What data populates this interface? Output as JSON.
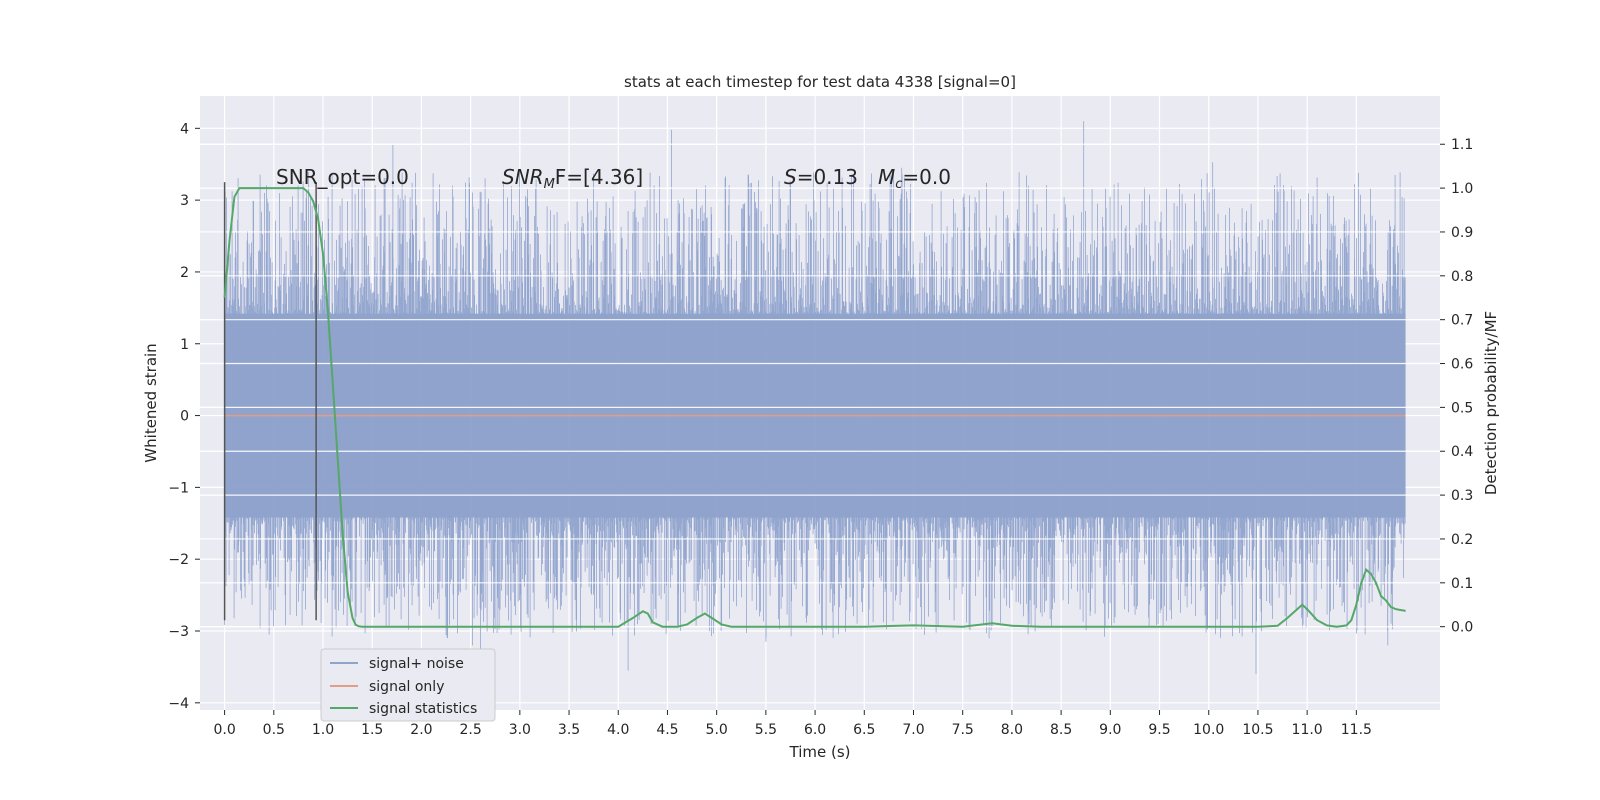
{
  "chart_data": {
    "type": "line",
    "title": "stats at each timestep for test data 4338 [signal=0]",
    "xlabel": "Time (s)",
    "ylabel": "Whitened strain",
    "ylabel_right": "Detection probability/MF",
    "xlim": [
      -0.25,
      12.35
    ],
    "ylim": [
      -4.1,
      4.45
    ],
    "ylim_right": [
      -0.19,
      1.21
    ],
    "x_ticks": [
      "0.0",
      "0.5",
      "1.0",
      "1.5",
      "2.0",
      "2.5",
      "3.0",
      "3.5",
      "4.0",
      "4.5",
      "5.0",
      "5.5",
      "6.0",
      "6.5",
      "7.0",
      "7.5",
      "8.0",
      "8.5",
      "9.0",
      "9.5",
      "10.0",
      "10.5",
      "11.0",
      "11.5"
    ],
    "y_ticks": [
      "4",
      "3",
      "2",
      "1",
      "0",
      "−1",
      "−2",
      "−3",
      "−4"
    ],
    "y_ticks_right": [
      "1.1",
      "1.0",
      "0.9",
      "0.8",
      "0.7",
      "0.6",
      "0.5",
      "0.4",
      "0.3",
      "0.2",
      "0.1",
      "0.0"
    ],
    "grid": true,
    "legend_position": "lower-left",
    "annotations": {
      "snr_opt": "SNR_opt=0.0",
      "snr_mf": {
        "symbol": "SNR",
        "subscript": "M",
        "suffix": "F=[4.36]"
      },
      "s": {
        "symbol": "S",
        "suffix": "=0.13"
      },
      "mc": {
        "symbol": "M",
        "subscript": "c",
        "suffix": "=0.0"
      }
    },
    "series": [
      {
        "name": "signal+ noise",
        "color": "#8fa3cc",
        "axis": "left",
        "x_range": [
          0.0,
          12.0
        ],
        "envelope_max": 4.1,
        "envelope_min": -3.6,
        "spikes": [
          [
            1.71,
            3.77
          ],
          [
            4.54,
            3.98
          ],
          [
            8.73,
            4.1
          ],
          [
            10.04,
            3.53
          ],
          [
            6.88,
            3.45
          ],
          [
            11.48,
            3.22
          ],
          [
            4.1,
            -3.55
          ],
          [
            10.48,
            -3.6
          ],
          [
            2.52,
            -3.2
          ],
          [
            5.5,
            -3.15
          ],
          [
            11.82,
            -3.2
          ],
          [
            2.6,
            -3.3
          ]
        ]
      },
      {
        "name": "signal only",
        "color": "#e39c85",
        "axis": "left",
        "x": [
          0.0,
          12.0
        ],
        "y": [
          0.0,
          0.0
        ]
      },
      {
        "name": "signal statistics",
        "color": "#55a868",
        "axis": "right",
        "x": [
          0.0,
          0.05,
          0.1,
          0.15,
          0.2,
          0.3,
          0.5,
          0.7,
          0.8,
          0.85,
          0.9,
          0.95,
          1.0,
          1.05,
          1.1,
          1.15,
          1.2,
          1.25,
          1.3,
          1.33,
          1.36,
          1.4,
          1.5,
          2.0,
          3.0,
          4.0,
          4.15,
          4.25,
          4.3,
          4.35,
          4.45,
          4.6,
          4.7,
          4.8,
          4.88,
          4.95,
          5.05,
          5.15,
          5.3,
          5.5,
          6.0,
          6.5,
          7.0,
          7.5,
          7.8,
          8.0,
          8.3,
          9.0,
          9.5,
          10.0,
          10.5,
          10.7,
          10.8,
          10.9,
          10.95,
          11.0,
          11.1,
          11.2,
          11.3,
          11.4,
          11.45,
          11.5,
          11.55,
          11.6,
          11.65,
          11.7,
          11.75,
          11.8,
          11.85,
          11.9,
          11.95,
          12.0
        ],
        "y": [
          0.75,
          0.88,
          0.98,
          1.0,
          1.0,
          1.0,
          1.0,
          1.0,
          1.0,
          0.99,
          0.97,
          0.93,
          0.85,
          0.72,
          0.55,
          0.38,
          0.21,
          0.08,
          0.02,
          0.005,
          0.001,
          0.0,
          0.0,
          0.0,
          0.0,
          0.0,
          0.02,
          0.035,
          0.03,
          0.01,
          0.0,
          0.0,
          0.005,
          0.02,
          0.03,
          0.02,
          0.005,
          0.0,
          0.0,
          0.0,
          0.0,
          0.0,
          0.003,
          0.0,
          0.008,
          0.002,
          0.0,
          0.0,
          0.0,
          0.0,
          0.0,
          0.002,
          0.02,
          0.04,
          0.05,
          0.04,
          0.015,
          0.003,
          0.0,
          0.003,
          0.015,
          0.05,
          0.1,
          0.13,
          0.12,
          0.1,
          0.07,
          0.06,
          0.045,
          0.04,
          0.038,
          0.036
        ]
      }
    ],
    "markers": [
      {
        "x": 0.0,
        "y_range": [
          -2.85,
          3.25
        ],
        "color": "#555555"
      },
      {
        "x": 0.93,
        "y_range": [
          -2.85,
          3.25
        ],
        "color": "#555555"
      }
    ]
  }
}
